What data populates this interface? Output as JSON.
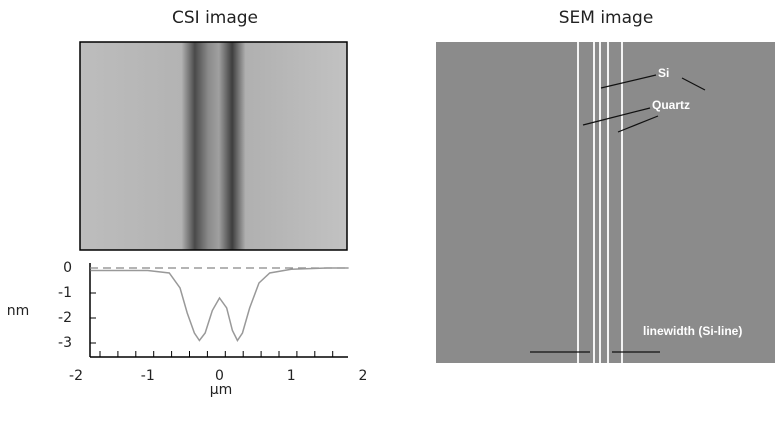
{
  "csi_title": "CSI image",
  "sem_title": "SEM image",
  "annotations": [
    "Si",
    "Quartz",
    "linewidth (Si-line)"
  ],
  "chart_data": {
    "type": "line",
    "x_label": "μm",
    "y_label": "nm",
    "x": [
      -1.8,
      -1.5,
      -1,
      -0.7,
      -0.55,
      -0.45,
      -0.35,
      -0.28,
      -0.2,
      -0.1,
      0,
      0.1,
      0.18,
      0.25,
      0.32,
      0.42,
      0.55,
      0.7,
      1,
      1.5,
      1.8
    ],
    "series": [
      {
        "color": "#999999",
        "values": [
          -0.1,
          -0.1,
          -0.1,
          -0.2,
          -0.8,
          -1.8,
          -2.6,
          -2.9,
          -2.6,
          -1.7,
          -1.2,
          -1.6,
          -2.5,
          -2.9,
          -2.6,
          -1.6,
          -0.6,
          -0.2,
          -0.05,
          0,
          0
        ]
      }
    ],
    "hline": 0,
    "xlim": [
      -2,
      2
    ],
    "xticks": [
      -2,
      -1,
      0,
      1,
      2
    ],
    "ylim": [
      -3.6,
      0.2
    ],
    "yticks": [
      0,
      -1,
      -2,
      -3
    ]
  }
}
